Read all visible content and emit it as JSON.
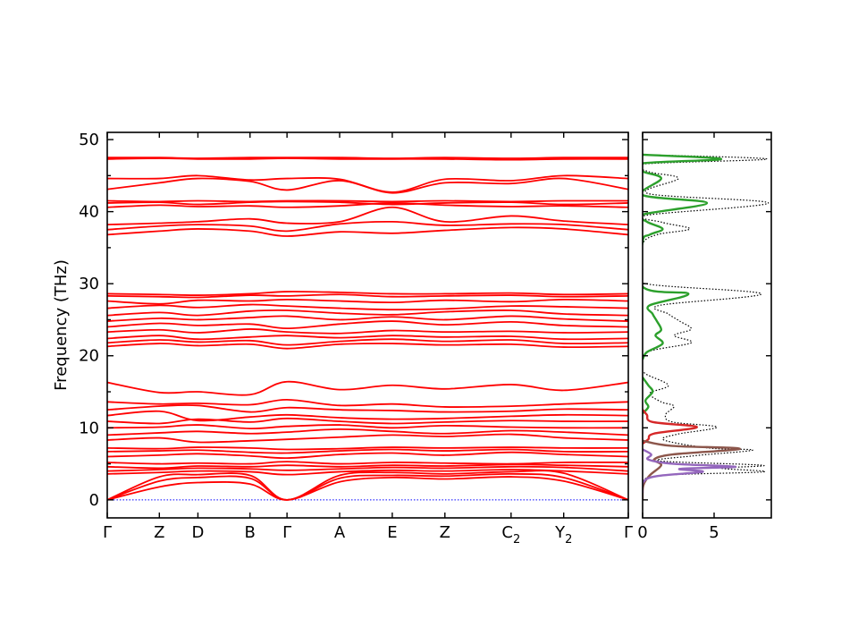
{
  "chart_data": [
    {
      "type": "line",
      "title": "",
      "xlabel": "",
      "ylabel": "Frequency (THz)",
      "ylim": [
        -2.5,
        51
      ],
      "yticks": [
        0,
        10,
        20,
        30,
        40,
        50
      ],
      "ytick_labels": [
        "0",
        "10",
        "20",
        "30",
        "40",
        "50"
      ],
      "x_labels": [
        {
          "name": "Γ",
          "sub": "",
          "pos": 0
        },
        {
          "name": "Z",
          "sub": "",
          "pos": 0.1
        },
        {
          "name": "D",
          "sub": "",
          "pos": 0.174
        },
        {
          "name": "B",
          "sub": "",
          "pos": 0.274
        },
        {
          "name": "Γ",
          "sub": "",
          "pos": 0.345
        },
        {
          "name": "A",
          "sub": "",
          "pos": 0.446
        },
        {
          "name": "E",
          "sub": "",
          "pos": 0.547
        },
        {
          "name": "Z",
          "sub": "",
          "pos": 0.648
        },
        {
          "name": "C",
          "sub": "2",
          "pos": 0.775
        },
        {
          "name": "Y",
          "sub": "2",
          "pos": 0.876
        },
        {
          "name": "Γ",
          "sub": "",
          "pos": 1
        }
      ],
      "band_color": "#ff0000",
      "zero_line_color": "#0000ff",
      "bands": [
        {
          "y": [
            0,
            0,
            0,
            0,
            0,
            0,
            0,
            0,
            0,
            0,
            0
          ],
          "dotted": true
        },
        {
          "y": [
            0,
            1.8,
            2.4,
            2.2,
            0,
            2.5,
            3.1,
            2.9,
            3.2,
            2.6,
            0
          ]
        },
        {
          "y": [
            0,
            2.6,
            3.1,
            3.0,
            0,
            3.0,
            3.4,
            3.3,
            3.6,
            3.1,
            0
          ]
        },
        {
          "y": [
            0,
            3.2,
            3.5,
            3.4,
            0,
            3.4,
            3.8,
            3.6,
            3.9,
            3.7,
            0
          ]
        },
        {
          "y": [
            3.6,
            3.8,
            4.0,
            3.9,
            3.5,
            3.9,
            4.1,
            4.0,
            4.2,
            4.0,
            3.6
          ]
        },
        {
          "y": [
            4.0,
            4.2,
            4.4,
            4.3,
            4.1,
            4.3,
            4.5,
            4.4,
            4.6,
            4.5,
            4.0
          ]
        },
        {
          "y": [
            4.6,
            4.4,
            4.7,
            4.6,
            4.8,
            4.6,
            4.8,
            4.7,
            4.9,
            4.8,
            4.6
          ]
        },
        {
          "y": [
            5.2,
            5.0,
            5.1,
            5.0,
            5.3,
            5.0,
            5.2,
            5.1,
            5.0,
            5.2,
            5.2
          ]
        },
        {
          "y": [
            6.0,
            6.2,
            6.4,
            6.1,
            5.8,
            6.3,
            6.5,
            6.2,
            6.6,
            6.3,
            6.0
          ]
        },
        {
          "y": [
            6.7,
            6.8,
            6.9,
            6.6,
            6.5,
            6.8,
            7.0,
            6.8,
            7.0,
            6.7,
            6.7
          ]
        },
        {
          "y": [
            7.2,
            7.1,
            7.3,
            7.2,
            7.0,
            7.1,
            7.3,
            7.2,
            7.3,
            7.2,
            7.2
          ]
        },
        {
          "y": [
            8.3,
            8.6,
            8.0,
            8.2,
            8.4,
            8.7,
            9.0,
            8.8,
            9.1,
            8.6,
            8.3
          ]
        },
        {
          "y": [
            9.0,
            9.3,
            9.5,
            9.2,
            9.4,
            9.8,
            9.5,
            9.2,
            9.6,
            9.4,
            9.0
          ]
        },
        {
          "y": [
            10.0,
            10.1,
            10.4,
            9.9,
            10.2,
            10.4,
            10.0,
            10.3,
            10.1,
            10.0,
            10.0
          ]
        },
        {
          "y": [
            10.9,
            10.6,
            11.2,
            10.8,
            11.3,
            10.9,
            10.6,
            10.8,
            11.0,
            10.9,
            10.9
          ]
        },
        {
          "y": [
            11.7,
            12.3,
            11.0,
            11.5,
            11.8,
            11.4,
            11.2,
            11.3,
            11.6,
            11.8,
            11.7
          ]
        },
        {
          "y": [
            12.5,
            13.0,
            13.1,
            12.2,
            12.8,
            12.5,
            12.4,
            12.2,
            12.3,
            12.6,
            12.5
          ]
        },
        {
          "y": [
            13.6,
            13.3,
            13.4,
            13.2,
            13.9,
            13.1,
            13.3,
            12.9,
            13.0,
            13.3,
            13.6
          ]
        },
        {
          "y": [
            16.3,
            14.9,
            15.0,
            14.6,
            16.4,
            15.3,
            15.9,
            15.4,
            16.0,
            15.2,
            16.3
          ]
        },
        {
          "y": [
            21.3,
            21.7,
            21.4,
            21.6,
            21.0,
            21.6,
            21.7,
            21.5,
            21.6,
            21.2,
            21.3
          ]
        },
        {
          "y": [
            21.8,
            22.2,
            21.9,
            22.1,
            21.5,
            22.0,
            22.3,
            22.0,
            22.2,
            21.7,
            21.8
          ]
        },
        {
          "y": [
            22.4,
            22.8,
            22.3,
            22.6,
            22.8,
            22.5,
            22.8,
            22.6,
            22.7,
            22.3,
            22.4
          ]
        },
        {
          "y": [
            23.3,
            23.6,
            23.2,
            23.7,
            23.3,
            23.1,
            23.5,
            23.3,
            23.4,
            23.2,
            23.3
          ]
        },
        {
          "y": [
            24.0,
            24.5,
            24.2,
            24.4,
            23.8,
            24.4,
            24.8,
            24.3,
            24.7,
            24.2,
            24.0
          ]
        },
        {
          "y": [
            24.8,
            25.2,
            25.0,
            25.3,
            25.5,
            25.0,
            25.4,
            25.0,
            25.5,
            25.1,
            24.8
          ]
        },
        {
          "y": [
            25.6,
            26.0,
            25.6,
            26.2,
            26.3,
            25.9,
            25.7,
            26.1,
            26.3,
            25.8,
            25.6
          ]
        },
        {
          "y": [
            26.6,
            27.0,
            26.7,
            27.1,
            26.9,
            26.6,
            26.4,
            26.5,
            26.9,
            26.8,
            26.6
          ]
        },
        {
          "y": [
            27.6,
            27.2,
            27.7,
            27.6,
            27.8,
            27.6,
            27.4,
            27.7,
            27.5,
            27.8,
            27.6
          ]
        },
        {
          "y": [
            28.3,
            28.2,
            28.1,
            28.4,
            28.3,
            28.5,
            28.2,
            28.3,
            28.4,
            28.2,
            28.3
          ]
        },
        {
          "y": [
            28.6,
            28.5,
            28.4,
            28.6,
            28.9,
            28.8,
            28.6,
            28.6,
            28.7,
            28.5,
            28.6
          ]
        },
        {
          "y": [
            36.8,
            37.3,
            37.6,
            37.3,
            36.6,
            37.2,
            37.0,
            37.4,
            37.8,
            37.6,
            36.8
          ]
        },
        {
          "y": [
            37.5,
            38.0,
            38.2,
            38.0,
            37.3,
            38.3,
            38.6,
            38.1,
            38.3,
            38.2,
            37.5
          ]
        },
        {
          "y": [
            38.2,
            38.4,
            38.6,
            39.0,
            38.4,
            38.6,
            40.6,
            38.6,
            39.4,
            38.7,
            38.2
          ]
        },
        {
          "y": [
            40.6,
            40.9,
            40.7,
            40.8,
            40.6,
            40.8,
            41.2,
            40.9,
            40.7,
            40.8,
            40.6
          ]
        },
        {
          "y": [
            41.2,
            41.3,
            41.0,
            41.3,
            41.4,
            41.3,
            41.0,
            41.2,
            41.3,
            41.0,
            41.2
          ]
        },
        {
          "y": [
            41.5,
            41.4,
            41.5,
            41.4,
            41.5,
            41.5,
            41.4,
            41.5,
            41.4,
            41.5,
            41.5
          ]
        },
        {
          "y": [
            43.1,
            44.0,
            44.6,
            44.2,
            43.0,
            44.3,
            42.6,
            44.0,
            43.9,
            44.6,
            43.1
          ]
        },
        {
          "y": [
            44.6,
            44.6,
            45.0,
            44.4,
            44.6,
            44.5,
            42.7,
            44.5,
            44.3,
            45.0,
            44.6
          ]
        },
        {
          "y": [
            47.3,
            47.4,
            47.3,
            47.3,
            47.4,
            47.3,
            47.3,
            47.3,
            47.2,
            47.3,
            47.3
          ]
        },
        {
          "y": [
            47.5,
            47.5,
            47.4,
            47.5,
            47.5,
            47.5,
            47.4,
            47.5,
            47.4,
            47.5,
            47.5
          ]
        }
      ]
    },
    {
      "type": "line",
      "title": "",
      "xlabel": "",
      "ylabel": "",
      "xlim": [
        0,
        9
      ],
      "xticks": [
        0,
        5
      ],
      "xtick_labels": [
        "0",
        "5"
      ],
      "ylim": [
        -2.5,
        51
      ],
      "series": [
        {
          "color": "#000000",
          "dotted": true,
          "points": [
            [
              0,
              0
            ],
            [
              0.02,
              1
            ],
            [
              0.05,
              2
            ],
            [
              0.25,
              3
            ],
            [
              2.2,
              3.5
            ],
            [
              8.5,
              3.9
            ],
            [
              5.5,
              4.4
            ],
            [
              8.4,
              4.8
            ],
            [
              1.2,
              5.4
            ],
            [
              3.5,
              6.1
            ],
            [
              7.7,
              6.9
            ],
            [
              4.6,
              7.2
            ],
            [
              1.5,
              8.3
            ],
            [
              2.4,
              9.1
            ],
            [
              5.2,
              10.1
            ],
            [
              2.1,
              10.8
            ],
            [
              1.6,
              11.8
            ],
            [
              2.2,
              13.0
            ],
            [
              1.3,
              13.6
            ],
            [
              0.5,
              14.8
            ],
            [
              1.8,
              15.9
            ],
            [
              0.2,
              17.5
            ],
            [
              0,
              18.5
            ],
            [
              0.3,
              20.5
            ],
            [
              3.4,
              21.8
            ],
            [
              2.2,
              22.8
            ],
            [
              3.4,
              23.7
            ],
            [
              2.6,
              24.8
            ],
            [
              1.8,
              25.8
            ],
            [
              1.2,
              27.0
            ],
            [
              8.3,
              28.6
            ],
            [
              0.2,
              30.0
            ],
            [
              0,
              32
            ],
            [
              0,
              35.5
            ],
            [
              1.0,
              36.8
            ],
            [
              3.3,
              37.6
            ],
            [
              1.4,
              38.5
            ],
            [
              0.3,
              39.5
            ],
            [
              8.8,
              41.2
            ],
            [
              0.4,
              42.5
            ],
            [
              2.5,
              44.6
            ],
            [
              0.5,
              45.5
            ],
            [
              0,
              46.6
            ],
            [
              8.7,
              47.3
            ],
            [
              0,
              47.9
            ]
          ]
        },
        {
          "color": "#2ca02c",
          "points": [
            [
              0,
              19.5
            ],
            [
              0.3,
              20.5
            ],
            [
              1.4,
              21.7
            ],
            [
              0.9,
              22.8
            ],
            [
              1.3,
              23.6
            ],
            [
              1.0,
              24.8
            ],
            [
              0.7,
              25.8
            ],
            [
              0.5,
              27.0
            ],
            [
              3.2,
              28.6
            ],
            [
              0,
              29.6
            ],
            [
              0,
              35.8
            ],
            [
              0.5,
              36.8
            ],
            [
              1.4,
              37.6
            ],
            [
              0.3,
              38.6
            ],
            [
              0,
              39.6
            ],
            [
              4.5,
              41.2
            ],
            [
              0,
              42.3
            ],
            [
              1.3,
              44.6
            ],
            [
              0,
              45.6
            ],
            [
              0,
              46.7
            ],
            [
              5.5,
              47.3
            ],
            [
              0,
              47.9
            ]
          ]
        },
        {
          "color": "#2ca02c",
          "points": [
            [
              0,
              12.0
            ],
            [
              0.4,
              12.9
            ],
            [
              0.2,
              13.8
            ],
            [
              0.7,
              15.0
            ],
            [
              0.4,
              15.9
            ],
            [
              0,
              17.0
            ]
          ]
        },
        {
          "color": "#d62728",
          "points": [
            [
              0,
              7.8
            ],
            [
              0.4,
              8.4
            ],
            [
              0.8,
              9.2
            ],
            [
              3.8,
              10.1
            ],
            [
              0.7,
              10.8
            ],
            [
              0.3,
              11.8
            ],
            [
              0,
              12.5
            ]
          ]
        },
        {
          "color": "#8c564b",
          "points": [
            [
              0,
              0
            ],
            [
              0.05,
              2
            ],
            [
              0.5,
              3.4
            ],
            [
              1.3,
              4.8
            ],
            [
              0.8,
              5.6
            ],
            [
              2.1,
              6.3
            ],
            [
              6.8,
              7.1
            ],
            [
              2.0,
              7.5
            ],
            [
              0,
              8.2
            ]
          ]
        },
        {
          "color": "#9467bd",
          "points": [
            [
              0,
              1
            ],
            [
              0.05,
              2.5
            ],
            [
              1.0,
              3.3
            ],
            [
              4.2,
              3.9
            ],
            [
              2.6,
              4.3
            ],
            [
              6.5,
              4.6
            ],
            [
              2.2,
              5.0
            ],
            [
              0.4,
              5.6
            ],
            [
              0.6,
              6.3
            ],
            [
              0,
              7.0
            ]
          ]
        }
      ]
    }
  ]
}
